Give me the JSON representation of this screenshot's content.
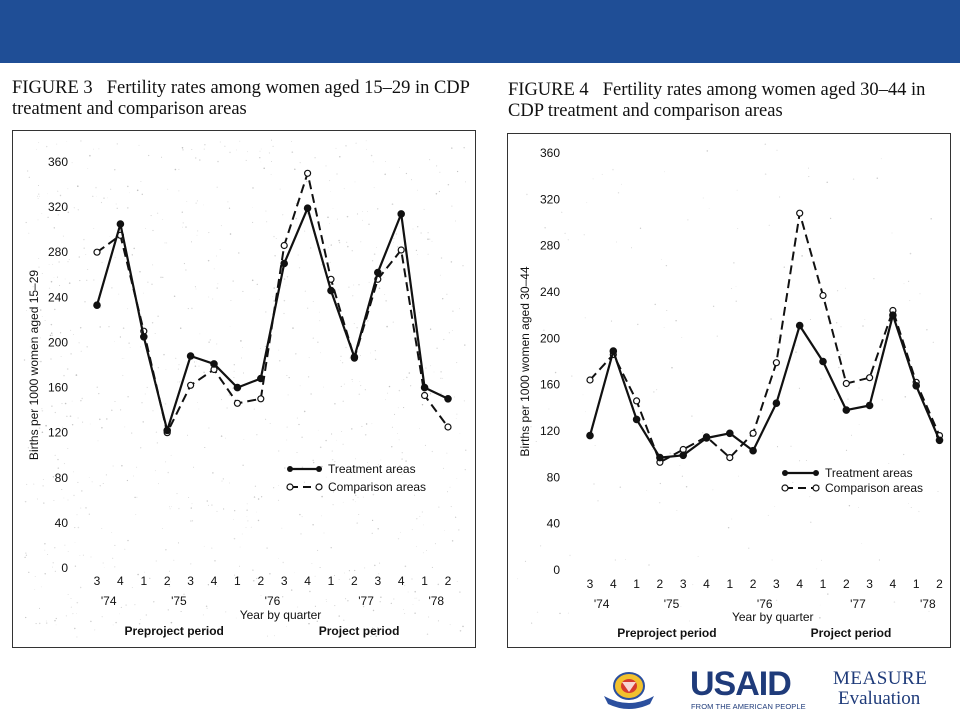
{
  "slide": {
    "header_color": "#1f4e96",
    "figures": [
      {
        "number": "FIGURE 3",
        "title": "Fertility rates among women aged 15–29 in CDP treatment and comparison areas"
      },
      {
        "number": "FIGURE 4",
        "title": "Fertility rates among women aged 30–44 in CDP treatment and comparison areas"
      }
    ],
    "logos": {
      "seal": "seal-emblem",
      "usaid": "USAID",
      "usaid_tagline": "FROM THE AMERICAN PEOPLE",
      "measure": "MEASURE",
      "evaluation": "Evaluation"
    }
  },
  "chart_data": [
    {
      "type": "line",
      "title": "FIGURE 3 Fertility rates among women aged 15–29 in CDP treatment and comparison areas",
      "xlabel": "Year by quarter",
      "ylabel": "Births per 1000 women aged 15–29",
      "ylim": [
        0,
        360
      ],
      "yticks": [
        "0",
        "40",
        "80",
        "120",
        "160",
        "200",
        "240",
        "280",
        "320",
        "360"
      ],
      "categories": [
        "3",
        "4",
        "1",
        "2",
        "3",
        "4",
        "1",
        "2",
        "3",
        "4",
        "1",
        "2",
        "3",
        "4",
        "1",
        "2"
      ],
      "years": [
        {
          "label": "'74",
          "at": 0.5
        },
        {
          "label": "'75",
          "at": 3.5
        },
        {
          "label": "'76",
          "at": 7.5
        },
        {
          "label": "'77",
          "at": 11.5
        },
        {
          "label": "'78",
          "at": 14.5
        }
      ],
      "periods": [
        {
          "label": "Preproject period",
          "at": 3.3
        },
        {
          "label": "Project period",
          "at": 11.2
        }
      ],
      "series": [
        {
          "name": "Treatment areas",
          "style": "solid-filled",
          "values": [
            233,
            305,
            205,
            122,
            188,
            181,
            160,
            168,
            270,
            319,
            246,
            187,
            262,
            314,
            160,
            150
          ]
        },
        {
          "name": "Comparison areas",
          "style": "dashed-open",
          "values": [
            280,
            295,
            210,
            120,
            162,
            176,
            146,
            150,
            286,
            350,
            256,
            186,
            256,
            282,
            153,
            125
          ]
        }
      ],
      "legend": "bottom-right"
    },
    {
      "type": "line",
      "title": "FIGURE 4 Fertility rates among women aged 30–44 in CDP treatment and comparison areas",
      "xlabel": "Year by quarter",
      "ylabel": "Births per 1000 women aged 30–44",
      "ylim": [
        0,
        360
      ],
      "yticks": [
        "0",
        "40",
        "80",
        "120",
        "160",
        "200",
        "240",
        "280",
        "320",
        "360"
      ],
      "categories": [
        "3",
        "4",
        "1",
        "2",
        "3",
        "4",
        "1",
        "2",
        "3",
        "4",
        "1",
        "2",
        "3",
        "4",
        "1",
        "2"
      ],
      "years": [
        {
          "label": "'74",
          "at": 0.5
        },
        {
          "label": "'75",
          "at": 3.5
        },
        {
          "label": "'76",
          "at": 7.5
        },
        {
          "label": "'77",
          "at": 11.5
        },
        {
          "label": "'78",
          "at": 14.5
        }
      ],
      "periods": [
        {
          "label": "Preproject period",
          "at": 3.3
        },
        {
          "label": "Project period",
          "at": 11.2
        }
      ],
      "series": [
        {
          "name": "Treatment areas",
          "style": "solid-filled",
          "values": [
            116,
            189,
            130,
            97,
            99,
            114,
            118,
            103,
            144,
            211,
            180,
            138,
            142,
            220,
            159,
            112
          ]
        },
        {
          "name": "Comparison areas",
          "style": "dashed-open",
          "values": [
            164,
            186,
            146,
            93,
            104,
            115,
            97,
            118,
            179,
            308,
            237,
            161,
            166,
            224,
            162,
            116
          ]
        }
      ],
      "legend": "bottom-right"
    }
  ]
}
